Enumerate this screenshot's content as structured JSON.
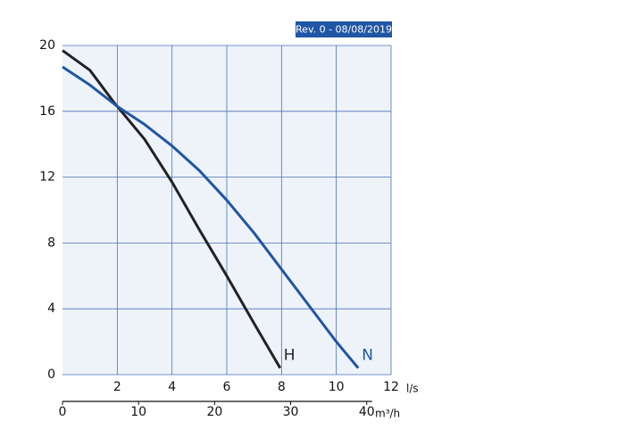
{
  "chart_data": {
    "type": "line",
    "revision": "Rev. 0 - 08/08/2019",
    "x_label": "l/s",
    "x2_label": "m³/h",
    "xlim": [
      0,
      12
    ],
    "xticks": [
      2,
      4,
      6,
      8,
      10,
      12
    ],
    "x2lim": [
      0,
      43.2
    ],
    "x2ticks": [
      0,
      10,
      20,
      30,
      40
    ],
    "ylim": [
      0,
      20
    ],
    "yticks": [
      0,
      4,
      8,
      12,
      16,
      20
    ],
    "grid": true,
    "series": [
      {
        "name": "H",
        "color": "#222222",
        "x": [
          0,
          1,
          1.9,
          3,
          4,
          5,
          6,
          7,
          7.95
        ],
        "values": [
          19.7,
          18.5,
          16.5,
          14.3,
          11.7,
          8.8,
          6.0,
          3.1,
          0.4
        ]
      },
      {
        "name": "N",
        "color": "#1f56a5",
        "x": [
          0,
          1,
          2,
          3,
          4,
          5,
          6,
          7,
          8,
          9,
          10,
          10.8
        ],
        "values": [
          18.7,
          17.6,
          16.3,
          15.2,
          13.9,
          12.4,
          10.6,
          8.6,
          6.4,
          4.2,
          2.0,
          0.4
        ]
      }
    ]
  }
}
